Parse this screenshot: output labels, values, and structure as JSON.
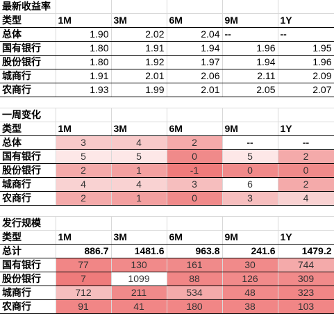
{
  "columns": [
    "类型",
    "1M",
    "3M",
    "6M",
    "9M",
    "1Y"
  ],
  "section1": {
    "title": "最新收益率",
    "rows": [
      {
        "label": "总体",
        "values": [
          "1.90",
          "2.02",
          "2.04",
          "--",
          "--"
        ]
      },
      {
        "label": "国有银行",
        "values": [
          "1.80",
          "1.91",
          "1.94",
          "1.96",
          "1.95"
        ]
      },
      {
        "label": "股份银行",
        "values": [
          "1.80",
          "1.92",
          "1.97",
          "1.94",
          "1.96"
        ]
      },
      {
        "label": "城商行",
        "values": [
          "1.91",
          "2.01",
          "2.06",
          "2.11",
          "2.09"
        ]
      },
      {
        "label": "农商行",
        "values": [
          "1.93",
          "1.99",
          "2.01",
          "2.05",
          "2.07"
        ]
      }
    ]
  },
  "section2": {
    "title": "一周变化",
    "rows": [
      {
        "label": "总体",
        "values": [
          "3",
          "4",
          "2",
          "--",
          "--"
        ],
        "colors": [
          "#f8c9c9",
          "#f8c9c9",
          "#f4aaaa",
          "#ffffff",
          "#ffffff"
        ]
      },
      {
        "label": "国有银行",
        "values": [
          "5",
          "5",
          "0",
          "5",
          "2"
        ],
        "colors": [
          "#fde7e7",
          "#fde7e7",
          "#f08a8a",
          "#fde7e7",
          "#f4aaaa"
        ]
      },
      {
        "label": "股份银行",
        "values": [
          "2",
          "1",
          "-1",
          "0",
          "0"
        ],
        "colors": [
          "#f4aaaa",
          "#f3a0a0",
          "#ef7b7b",
          "#f08a8a",
          "#f08a8a"
        ]
      },
      {
        "label": "城商行",
        "values": [
          "4",
          "4",
          "3",
          "6",
          "2"
        ],
        "colors": [
          "#f9d2d2",
          "#f9d2d2",
          "#f6bebe",
          "#ffffff",
          "#f4aaaa"
        ]
      },
      {
        "label": "农商行",
        "values": [
          "2",
          "1",
          "0",
          "3",
          "4"
        ],
        "colors": [
          "#f4aaaa",
          "#f3a0a0",
          "#f08a8a",
          "#f6bebe",
          "#f9d2d2"
        ]
      }
    ]
  },
  "section3": {
    "title": "发行规模",
    "total": {
      "label": "总计",
      "values": [
        "886.7",
        "1481.6",
        "963.8",
        "241.6",
        "1479.2"
      ]
    },
    "rows": [
      {
        "label": "国有银行",
        "values": [
          "77",
          "130",
          "161",
          "30",
          "744"
        ],
        "colors": [
          "#f18686",
          "#f18a8a",
          "#f08a8a",
          "#f18a8a",
          "#f4aaaa"
        ]
      },
      {
        "label": "股份银行",
        "values": [
          "7",
          "1099",
          "88",
          "126",
          "309"
        ],
        "colors": [
          "#ef7b7b",
          "#ffffff",
          "#f18686",
          "#f18a8a",
          "#f18a8a"
        ]
      },
      {
        "label": "城商行",
        "values": [
          "712",
          "211",
          "534",
          "48",
          "323"
        ],
        "colors": [
          "#f6bebe",
          "#f08a8a",
          "#f4aaaa",
          "#f18a8a",
          "#f18686"
        ]
      },
      {
        "label": "农商行",
        "values": [
          "91",
          "41",
          "180",
          "38",
          "103"
        ],
        "colors": [
          "#f18686",
          "#f18686",
          "#f18686",
          "#f18686",
          "#f18686"
        ]
      }
    ]
  }
}
